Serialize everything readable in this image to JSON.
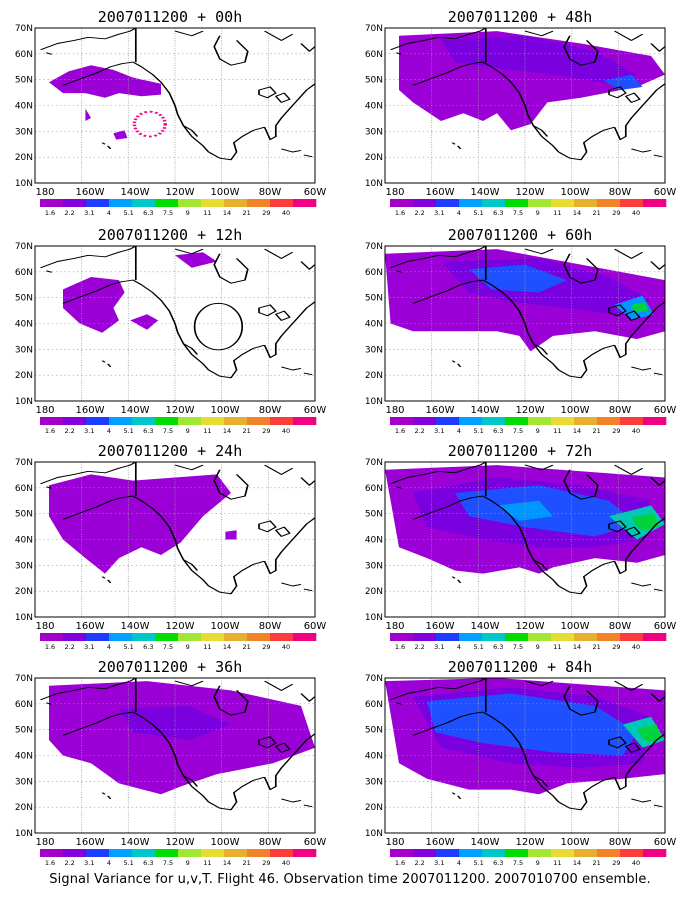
{
  "panels": [
    {
      "title": "2007011200 + 00h"
    },
    {
      "title": "2007011200 + 48h"
    },
    {
      "title": "2007011200 + 12h"
    },
    {
      "title": "2007011200 + 60h"
    },
    {
      "title": "2007011200 + 24h"
    },
    {
      "title": "2007011200 + 72h"
    },
    {
      "title": "2007011200 + 36h"
    },
    {
      "title": "2007011200 + 84h"
    }
  ],
  "lat_labels": [
    "70N",
    "60N",
    "50N",
    "40N",
    "30N",
    "20N",
    "10N"
  ],
  "lon_labels": [
    "180",
    "160W",
    "140W",
    "120W",
    "100W",
    "80W",
    "60W"
  ],
  "colorbar": {
    "labels": [
      "1.6",
      "2.2",
      "3.1",
      "4",
      "5.1",
      "6.3",
      "7.5",
      "9",
      "11",
      "14",
      "21",
      "29",
      "40"
    ],
    "colors": [
      "#a000c8",
      "#8200dc",
      "#1e3cff",
      "#00a0ff",
      "#00c8c8",
      "#00dc00",
      "#a0e632",
      "#e6dc32",
      "#e6af2d",
      "#f08228",
      "#fa3c3c",
      "#f00082"
    ]
  },
  "footer": "Signal Variance for u,v,T. Flight 46. Observation time 2007011200. 2007010700 ensemble."
}
